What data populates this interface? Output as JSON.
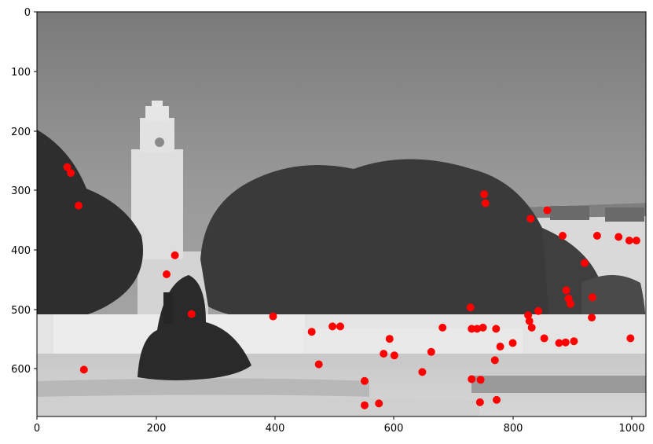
{
  "chart_data": {
    "type": "scatter",
    "title": "",
    "xlabel": "",
    "ylabel": "",
    "xlim": [
      0,
      1024
    ],
    "ylim": [
      683,
      0
    ],
    "y_inverted": true,
    "grid": false,
    "background": "grayscale photograph of a clock tower with a fountain and trees",
    "marker_color": "#ff0000",
    "x_ticks": [
      "0",
      "200",
      "400",
      "600",
      "800",
      "1000"
    ],
    "y_ticks": [
      "0",
      "100",
      "200",
      "300",
      "400",
      "500",
      "600"
    ],
    "series": [
      {
        "name": "",
        "points": [
          [
            51,
            262
          ],
          [
            57,
            272
          ],
          [
            70,
            327
          ],
          [
            232,
            411
          ],
          [
            218,
            443
          ],
          [
            260,
            510
          ],
          [
            79,
            604
          ],
          [
            397,
            514
          ],
          [
            462,
            540
          ],
          [
            497,
            531
          ],
          [
            510,
            531
          ],
          [
            593,
            552
          ],
          [
            583,
            577
          ],
          [
            601,
            580
          ],
          [
            474,
            595
          ],
          [
            551,
            623
          ],
          [
            551,
            664
          ],
          [
            575,
            661
          ],
          [
            648,
            608
          ],
          [
            663,
            574
          ],
          [
            682,
            533
          ],
          [
            729,
            499
          ],
          [
            731,
            535
          ],
          [
            740,
            535
          ],
          [
            750,
            533
          ],
          [
            752,
            308
          ],
          [
            754,
            323
          ],
          [
            772,
            535
          ],
          [
            779,
            565
          ],
          [
            770,
            588
          ],
          [
            800,
            559
          ],
          [
            731,
            620
          ],
          [
            746,
            621
          ],
          [
            745,
            659
          ],
          [
            773,
            655
          ],
          [
            830,
            349
          ],
          [
            858,
            335
          ],
          [
            884,
            378
          ],
          [
            826,
            512
          ],
          [
            828,
            522
          ],
          [
            832,
            533
          ],
          [
            843,
            505
          ],
          [
            853,
            551
          ],
          [
            878,
            559
          ],
          [
            889,
            558
          ],
          [
            903,
            556
          ],
          [
            890,
            470
          ],
          [
            894,
            484
          ],
          [
            897,
            493
          ],
          [
            921,
            424
          ],
          [
            934,
            482
          ],
          [
            933,
            516
          ],
          [
            942,
            378
          ],
          [
            978,
            380
          ],
          [
            996,
            386
          ],
          [
            1008,
            386
          ],
          [
            998,
            551
          ]
        ]
      }
    ]
  }
}
